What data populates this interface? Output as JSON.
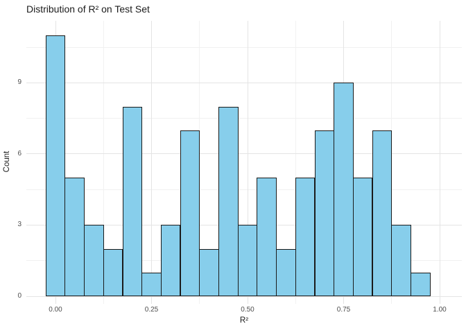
{
  "colors": {
    "background": "#FFFFFF",
    "bar_fill": "#87CEEB",
    "bar_stroke": "#1A1A1A",
    "grid_major": "#E4E4E4",
    "grid_minor": "#F1F1F1",
    "tick_text": "#4D4D4D",
    "title_text": "#1A1A1A",
    "axis_title_text": "#1A1A1A"
  },
  "chart_data": {
    "type": "bar",
    "subtype": "histogram",
    "title": "Distribution of R² on Test Set",
    "xlabel": "R²",
    "ylabel": "Count",
    "bin_width": 0.05,
    "bin_centers": [
      0.0,
      0.05,
      0.1,
      0.15,
      0.2,
      0.25,
      0.3,
      0.35,
      0.4,
      0.45,
      0.5,
      0.55,
      0.6,
      0.65,
      0.7,
      0.75,
      0.8,
      0.85,
      0.9,
      0.95
    ],
    "counts": [
      11,
      5,
      3,
      2,
      8,
      1,
      3,
      7,
      2,
      8,
      3,
      5,
      2,
      5,
      7,
      9,
      5,
      7,
      3,
      1
    ],
    "total_count": 97,
    "x_ticks": [
      {
        "value": 0.0,
        "label": "0.00"
      },
      {
        "value": 0.25,
        "label": "0.25"
      },
      {
        "value": 0.5,
        "label": "0.50"
      },
      {
        "value": 0.75,
        "label": "0.75"
      },
      {
        "value": 1.0,
        "label": "1.00"
      }
    ],
    "y_ticks": [
      {
        "value": 0,
        "label": "0"
      },
      {
        "value": 3,
        "label": "3"
      },
      {
        "value": 6,
        "label": "6"
      },
      {
        "value": 9,
        "label": "9"
      }
    ],
    "y_minor_ticks": [
      1.5,
      4.5,
      7.5,
      10.5
    ],
    "x_minor_ticks": [
      0.125,
      0.375,
      0.625,
      0.875
    ],
    "xlim": [
      -0.076,
      1.058
    ],
    "ylim": [
      -0.32,
      11.62
    ],
    "grid": "major+minor",
    "legend": "none"
  }
}
